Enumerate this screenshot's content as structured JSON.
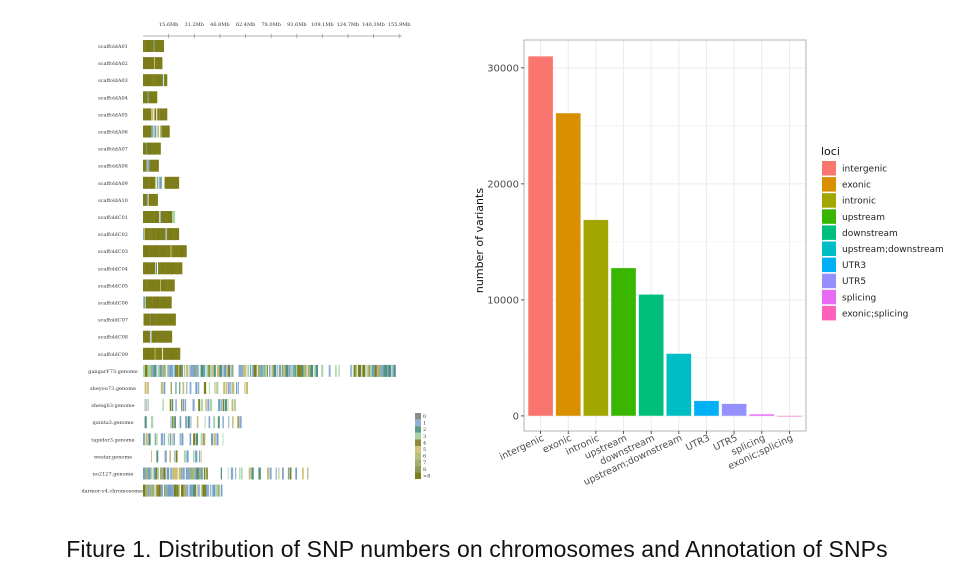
{
  "caption": "Fiture 1. Distribution of SNP numbers on chromosomes and Annotation of SNPs",
  "chart_data": [
    {
      "type": "heatmap",
      "title": "",
      "description": "SNP density distribution along chromosomes/scaffolds (binned), colored by SNP count per bin",
      "x_axis": {
        "ticks": [
          "15.6Mb",
          "31.2Mb",
          "46.8Mb",
          "62.4Mb",
          "78.0Mb",
          "93.6Mb",
          "109.1Mb",
          "124.7Mb",
          "140.3Mb",
          "155.9Mb"
        ],
        "tick_values_mb": [
          15.6,
          31.2,
          46.8,
          62.4,
          78.0,
          93.6,
          109.1,
          124.7,
          140.3,
          155.9
        ],
        "range_mb": [
          0,
          160
        ]
      },
      "rows": [
        {
          "name": "scaffoldA01",
          "length_mb": 13,
          "segments": [
            [
              0,
              6.6,
              "g"
            ],
            [
              6.6,
              7,
              "t"
            ],
            [
              7.2,
              13,
              "g"
            ]
          ]
        },
        {
          "name": "scaffoldA02",
          "length_mb": 12,
          "segments": [
            [
              0,
              7,
              "g"
            ],
            [
              7.3,
              12,
              "g"
            ]
          ]
        },
        {
          "name": "scaffoldA03",
          "length_mb": 15,
          "segments": [
            [
              0,
              12,
              "g"
            ],
            [
              12,
              12.4,
              "t"
            ],
            [
              12.6,
              13,
              "w"
            ],
            [
              13,
              15,
              "g"
            ]
          ]
        },
        {
          "name": "scaffoldA04",
          "length_mb": 8.8,
          "segments": [
            [
              0,
              2.7,
              "g"
            ],
            [
              2.7,
              3,
              "t"
            ],
            [
              3.3,
              8.8,
              "g"
            ]
          ]
        },
        {
          "name": "scaffoldA05",
          "length_mb": 15,
          "segments": [
            [
              0,
              5,
              "g"
            ],
            [
              5,
              10,
              "mix"
            ],
            [
              10,
              15,
              "g"
            ]
          ]
        },
        {
          "name": "scaffoldA06",
          "length_mb": 16.5,
          "segments": [
            [
              0,
              5.2,
              "g"
            ],
            [
              5.2,
              11.5,
              "mix"
            ],
            [
              11.5,
              16.5,
              "g"
            ]
          ]
        },
        {
          "name": "scaffoldA07",
          "length_mb": 11,
          "segments": [
            [
              0,
              2.3,
              "g"
            ],
            [
              2.3,
              2.7,
              "t"
            ],
            [
              2.7,
              11,
              "g"
            ]
          ]
        },
        {
          "name": "scaffoldA08",
          "length_mb": 9.8,
          "segments": [
            [
              0,
              2.3,
              "g"
            ],
            [
              2.6,
              4,
              "b"
            ],
            [
              4,
              9.8,
              "g"
            ]
          ]
        },
        {
          "name": "scaffoldA09",
          "length_mb": 22.3,
          "segments": [
            [
              0,
              7.5,
              "g"
            ],
            [
              7.5,
              11.8,
              "mix"
            ],
            [
              13.3,
              22.3,
              "g"
            ]
          ]
        },
        {
          "name": "scaffoldA10",
          "length_mb": 9.2,
          "segments": [
            [
              0,
              2.4,
              "g"
            ],
            [
              2.4,
              2.9,
              "t"
            ],
            [
              3.4,
              9.2,
              "g"
            ]
          ]
        },
        {
          "name": "scaffoldC01",
          "length_mb": 19.8,
          "segments": [
            [
              0,
              10,
              "g"
            ],
            [
              10.4,
              10.7,
              "b"
            ],
            [
              11,
              18,
              "g"
            ],
            [
              18,
              19.8,
              "lg"
            ]
          ]
        },
        {
          "name": "scaffoldC02",
          "length_mb": 22.3,
          "segments": [
            [
              0,
              0.6,
              "b"
            ],
            [
              0.6,
              1.2,
              "y"
            ],
            [
              1.2,
              13.8,
              "g"
            ],
            [
              13.8,
              14.3,
              "b"
            ],
            [
              14.6,
              22.3,
              "g"
            ]
          ]
        },
        {
          "name": "scaffoldC03",
          "length_mb": 27,
          "segments": [
            [
              0,
              17,
              "g"
            ],
            [
              17,
              17.6,
              "y"
            ],
            [
              17.6,
              27,
              "g"
            ]
          ]
        },
        {
          "name": "scaffoldC04",
          "length_mb": 24.3,
          "segments": [
            [
              0,
              7.6,
              "g"
            ],
            [
              8,
              8.6,
              "t"
            ],
            [
              9.3,
              24.3,
              "g"
            ]
          ]
        },
        {
          "name": "scaffoldC05",
          "length_mb": 19.6,
          "segments": [
            [
              0,
              10.6,
              "g"
            ],
            [
              10.6,
              11,
              "y"
            ],
            [
              11,
              19.6,
              "g"
            ]
          ]
        },
        {
          "name": "scaffoldC06",
          "length_mb": 17.7,
          "segments": [
            [
              0,
              0.4,
              "b"
            ],
            [
              0.6,
              1,
              "t"
            ],
            [
              1.6,
              17.7,
              "g"
            ]
          ]
        },
        {
          "name": "scaffoldC07",
          "length_mb": 20.3,
          "segments": [
            [
              0.3,
              4.5,
              "g"
            ],
            [
              4.5,
              4.8,
              "t"
            ],
            [
              4.8,
              20.3,
              "g"
            ]
          ]
        },
        {
          "name": "scaffoldC08",
          "length_mb": 18,
          "segments": [
            [
              0,
              4.3,
              "g"
            ],
            [
              4.6,
              5,
              "b"
            ],
            [
              5.3,
              18,
              "g"
            ]
          ]
        },
        {
          "name": "scaffoldC09",
          "length_mb": 23,
          "segments": [
            [
              0,
              7.3,
              "g"
            ],
            [
              7.3,
              7.7,
              "y"
            ],
            [
              7.7,
              11.8,
              "g"
            ],
            [
              12.3,
              23,
              "g"
            ]
          ]
        },
        {
          "name": "gangarF73.genome",
          "length_mb": 156,
          "segments": [
            [
              0,
              56,
              "mix"
            ],
            [
              59,
              108,
              "mix"
            ],
            [
              110,
              124,
              "sparse"
            ],
            [
              128,
              156,
              "mix"
            ]
          ]
        },
        {
          "name": "zheyou73.genome",
          "length_mb": 66,
          "segments": [
            [
              1,
              6,
              "sparse"
            ],
            [
              11,
              66,
              "sparse"
            ]
          ]
        },
        {
          "name": "shengli3.genome",
          "length_mb": 58,
          "segments": [
            [
              1,
              6,
              "sparse"
            ],
            [
              12,
              58,
              "sparse"
            ]
          ]
        },
        {
          "name": "quinta3.genome",
          "length_mb": 61,
          "segments": [
            [
              1,
              9,
              "sparse"
            ],
            [
              17,
              61,
              "sparse"
            ]
          ]
        },
        {
          "name": "tapidor3.genome",
          "length_mb": 51,
          "segments": [
            [
              0,
              51,
              "sparse"
            ]
          ]
        },
        {
          "name": "westar.genome",
          "length_mb": 39,
          "segments": [
            [
              5,
              39,
              "sparse"
            ]
          ]
        },
        {
          "name": "no2127.genome",
          "length_mb": 102,
          "segments": [
            [
              0,
              40,
              "mix"
            ],
            [
              48,
              102,
              "sparse"
            ]
          ]
        },
        {
          "name": "darmor-v4.chromosomes",
          "length_mb": 49,
          "segments": [
            [
              0,
              49,
              "mix"
            ]
          ]
        }
      ],
      "legend": {
        "labels": [
          "0",
          "1",
          "2",
          "3",
          "4",
          "5",
          "6",
          "7",
          "8",
          ">8"
        ],
        "colors": [
          "#8c8c8c",
          "#92b0d4",
          "#5c9a8a",
          "#a8d5a8",
          "#8a8a3a",
          "#d2c47a",
          "#b9be7a",
          "#9fb070",
          "#8c9c50",
          "#7d7d1a"
        ]
      },
      "palette": {
        "g": "#7d7d1a",
        "t": "#4f8f80",
        "b": "#86a8cc",
        "y": "#c8bc74",
        "lg": "#a8d5a8",
        "w": "#ffffff"
      }
    },
    {
      "type": "bar",
      "title": "",
      "xlabel": "",
      "ylabel": "number of variants",
      "categories": [
        "intergenic",
        "exonic",
        "intronic",
        "upstream",
        "downstream",
        "upstream;downstream",
        "UTR3",
        "UTR5",
        "splicing",
        "exonic;splicing"
      ],
      "values": [
        31000,
        26100,
        16900,
        12750,
        10470,
        5370,
        1300,
        1050,
        150,
        10
      ],
      "colors": [
        "#F8766D",
        "#D89000",
        "#A3A500",
        "#39B600",
        "#00BF7D",
        "#00BFC4",
        "#00B0F6",
        "#9590FF",
        "#E76BF3",
        "#FF62BC"
      ],
      "ylim": [
        -1300,
        32400
      ],
      "yticks": [
        0,
        10000,
        20000,
        30000
      ],
      "ytick_labels": [
        "0",
        "10000",
        "20000",
        "30000"
      ],
      "grid": true,
      "legend": {
        "title": "loci",
        "placement": "right",
        "entries": [
          "intergenic",
          "exonic",
          "intronic",
          "upstream",
          "downstream",
          "upstream;downstream",
          "UTR3",
          "UTR5",
          "splicing",
          "exonic;splicing"
        ]
      }
    }
  ]
}
